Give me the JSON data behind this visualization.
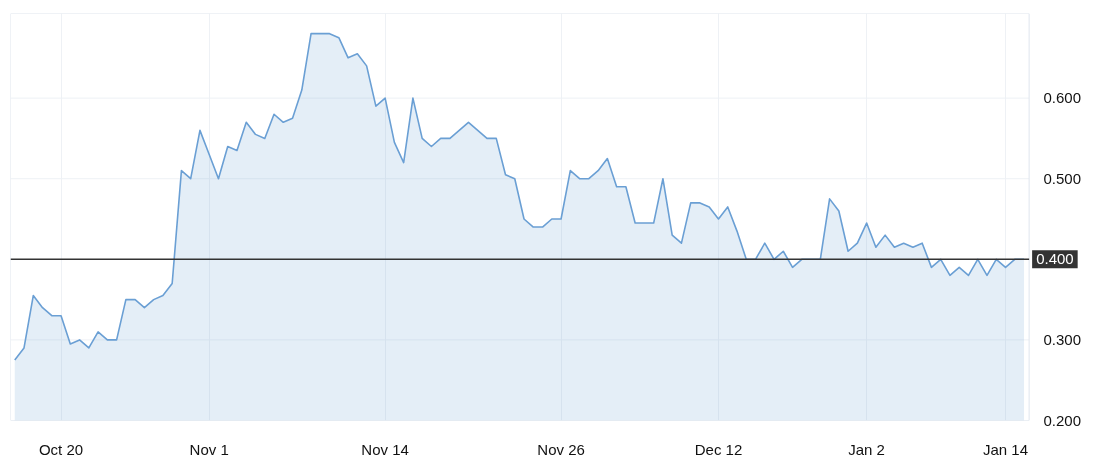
{
  "chart_data": {
    "type": "area",
    "categories": [
      null,
      null,
      null,
      null,
      null,
      "Oct 20",
      null,
      null,
      null,
      null,
      null,
      null,
      null,
      null,
      null,
      null,
      null,
      null,
      null,
      null,
      null,
      "Nov 1",
      null,
      null,
      null,
      null,
      null,
      null,
      null,
      null,
      null,
      null,
      null,
      null,
      null,
      null,
      null,
      null,
      null,
      null,
      "Nov 14",
      null,
      null,
      null,
      null,
      null,
      null,
      null,
      null,
      null,
      null,
      null,
      null,
      null,
      null,
      null,
      null,
      null,
      null,
      "Nov 26",
      null,
      null,
      null,
      null,
      null,
      null,
      null,
      null,
      null,
      null,
      null,
      null,
      null,
      null,
      null,
      null,
      "Dec 12",
      null,
      null,
      null,
      null,
      null,
      null,
      null,
      null,
      null,
      null,
      null,
      null,
      null,
      null,
      null,
      "Jan 2",
      null,
      null,
      null,
      null,
      null,
      null,
      null,
      null,
      null,
      null,
      null,
      null,
      null,
      null,
      "Jan 14",
      null,
      null
    ],
    "series": [
      {
        "color": "#6a9fd4",
        "values": [
          0.275,
          0.29,
          0.355,
          0.34,
          0.33,
          0.33,
          0.295,
          0.3,
          0.29,
          0.31,
          0.3,
          0.3,
          0.35,
          0.35,
          0.34,
          0.35,
          0.355,
          0.37,
          0.51,
          0.5,
          0.56,
          0.53,
          0.5,
          0.54,
          0.535,
          0.57,
          0.555,
          0.55,
          0.58,
          0.57,
          0.575,
          0.61,
          0.68,
          0.68,
          0.68,
          0.675,
          0.65,
          0.655,
          0.64,
          0.59,
          0.6,
          0.545,
          0.52,
          0.6,
          0.55,
          0.54,
          0.55,
          0.55,
          0.56,
          0.57,
          0.56,
          0.55,
          0.55,
          0.505,
          0.5,
          0.45,
          0.44,
          0.44,
          0.45,
          0.45,
          0.51,
          0.5,
          0.5,
          0.51,
          0.525,
          0.49,
          0.49,
          0.445,
          0.445,
          0.445,
          0.5,
          0.43,
          0.42,
          0.47,
          0.47,
          0.465,
          0.45,
          0.465,
          0.435,
          0.4,
          0.4,
          0.42,
          0.4,
          0.41,
          0.39,
          0.4,
          0.4,
          0.4,
          0.475,
          0.46,
          0.41,
          0.42,
          0.445,
          0.415,
          0.43,
          0.415,
          0.42,
          0.415,
          0.42,
          0.39,
          0.4,
          0.38,
          0.39,
          0.38,
          0.4,
          0.38,
          0.4,
          0.39,
          0.4,
          0.4
        ]
      }
    ],
    "ylim": [
      0.2,
      0.705
    ],
    "yticks": [
      {
        "value": 0.2,
        "label": "0.200"
      },
      {
        "value": 0.3,
        "label": "0.300"
      },
      {
        "value": 0.5,
        "label": "0.500"
      },
      {
        "value": 0.6,
        "label": "0.600"
      }
    ],
    "ref_lines": [
      {
        "axis": "y",
        "value": 0.4,
        "label": "0.400",
        "color": "#333333"
      }
    ],
    "grid": true
  }
}
